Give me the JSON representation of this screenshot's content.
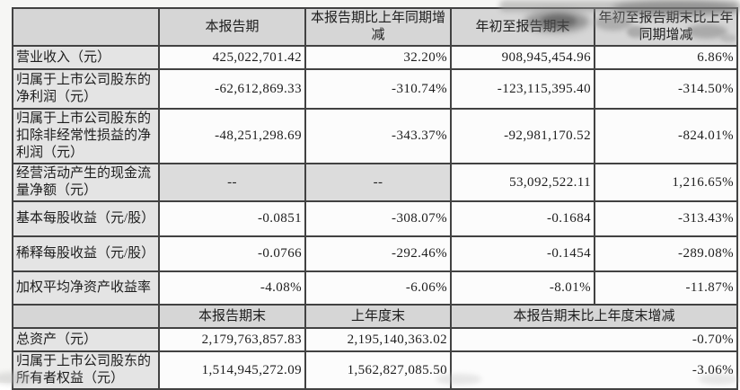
{
  "report_table": {
    "header1": [
      "",
      "本报告期",
      "本报告期比上年同期增减",
      "年初至报告期末",
      "年初至报告期末比上年同期增减"
    ],
    "section1": [
      {
        "label": "营业收入（元）",
        "values": [
          "425,022,701.42",
          "32.20%",
          "908,945,454.96",
          "6.86%"
        ]
      },
      {
        "label": "归属于上市公司股东的净利润（元）",
        "values": [
          "-62,612,869.33",
          "-310.74%",
          "-123,115,395.40",
          "-314.50%"
        ]
      },
      {
        "label": "归属于上市公司股东的扣除非经常性损益的净利润（元）",
        "values": [
          "-48,251,298.69",
          "-343.37%",
          "-92,981,170.52",
          "-824.01%"
        ]
      },
      {
        "label": "经营活动产生的现金流量净额（元）",
        "values": [
          "--",
          "--",
          "53,092,522.11",
          "1,216.65%"
        ]
      },
      {
        "label": "基本每股收益（元/股）",
        "values": [
          "-0.0851",
          "-308.07%",
          "-0.1684",
          "-313.43%"
        ]
      },
      {
        "label": "稀释每股收益（元/股）",
        "values": [
          "-0.0766",
          "-292.46%",
          "-0.1454",
          "-289.08%"
        ]
      },
      {
        "label": "加权平均净资产收益率",
        "values": [
          "-4.08%",
          "-6.06%",
          "-8.01%",
          "-11.87%"
        ]
      }
    ],
    "header2": [
      "",
      "本报告期末",
      "上年度末",
      "本报告期末比上年度末增减"
    ],
    "section2": [
      {
        "label": "总资产（元）",
        "values": [
          "2,179,763,857.83",
          "2,195,140,363.02",
          "-0.70%"
        ]
      },
      {
        "label": "归属于上市公司股东的所有者权益（元）",
        "values": [
          "1,514,945,272.09",
          "1,562,827,085.50",
          "-3.06%"
        ]
      }
    ]
  },
  "colors": {
    "header_bg": "#d6d6d6",
    "label_bg": "#e4e4e4",
    "shaded_bg": "#dcdcdc",
    "cell_bg": "#fcfcfc",
    "border": "#424242",
    "page_bg": "#f6f6f4"
  }
}
